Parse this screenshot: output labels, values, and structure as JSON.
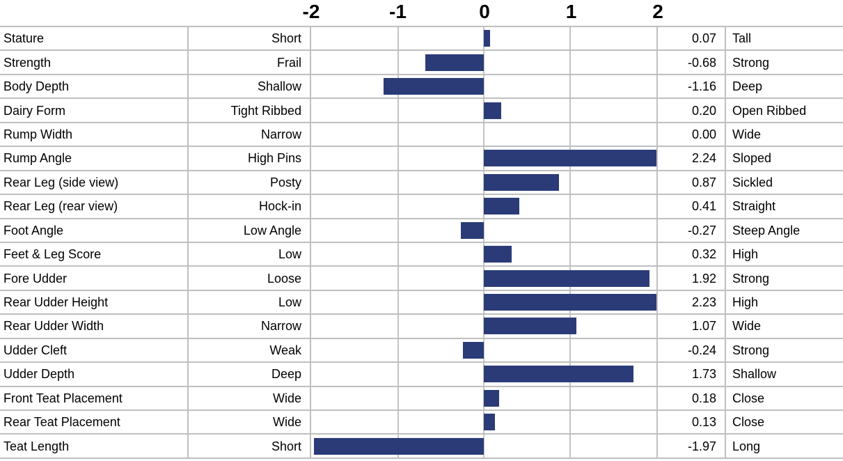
{
  "chart_data": {
    "type": "bar",
    "orientation": "horizontal",
    "axis_labels": [
      "-2",
      "-1",
      "0",
      "1",
      "2"
    ],
    "axis_ticks": [
      -2,
      -1,
      0,
      1,
      2
    ],
    "xlim": [
      -2,
      2
    ],
    "grid": true,
    "bar_color": "#2B3B78",
    "gridline_color": "#C3C3C3",
    "rows": [
      {
        "trait": "Stature",
        "low": "Short",
        "value": 0.07,
        "value_label": "0.07",
        "high": "Tall"
      },
      {
        "trait": "Strength",
        "low": "Frail",
        "value": -0.68,
        "value_label": "-0.68",
        "high": "Strong"
      },
      {
        "trait": "Body Depth",
        "low": "Shallow",
        "value": -1.16,
        "value_label": "-1.16",
        "high": "Deep"
      },
      {
        "trait": "Dairy Form",
        "low": "Tight Ribbed",
        "value": 0.2,
        "value_label": "0.20",
        "high": "Open Ribbed"
      },
      {
        "trait": "Rump Width",
        "low": "Narrow",
        "value": 0.0,
        "value_label": "0.00",
        "high": "Wide"
      },
      {
        "trait": "Rump Angle",
        "low": "High Pins",
        "value": 2.24,
        "value_label": "2.24",
        "high": "Sloped"
      },
      {
        "trait": "Rear Leg (side view)",
        "low": "Posty",
        "value": 0.87,
        "value_label": "0.87",
        "high": "Sickled"
      },
      {
        "trait": "Rear Leg (rear view)",
        "low": "Hock-in",
        "value": 0.41,
        "value_label": "0.41",
        "high": "Straight"
      },
      {
        "trait": "Foot Angle",
        "low": "Low Angle",
        "value": -0.27,
        "value_label": "-0.27",
        "high": "Steep Angle"
      },
      {
        "trait": "Feet & Leg Score",
        "low": "Low",
        "value": 0.32,
        "value_label": "0.32",
        "high": "High"
      },
      {
        "trait": "Fore Udder",
        "low": "Loose",
        "value": 1.92,
        "value_label": "1.92",
        "high": "Strong"
      },
      {
        "trait": "Rear Udder Height",
        "low": "Low",
        "value": 2.23,
        "value_label": "2.23",
        "high": "High"
      },
      {
        "trait": "Rear Udder Width",
        "low": "Narrow",
        "value": 1.07,
        "value_label": "1.07",
        "high": "Wide"
      },
      {
        "trait": "Udder Cleft",
        "low": "Weak",
        "value": -0.24,
        "value_label": "-0.24",
        "high": "Strong"
      },
      {
        "trait": "Udder Depth",
        "low": "Deep",
        "value": 1.73,
        "value_label": "1.73",
        "high": "Shallow"
      },
      {
        "trait": "Front Teat Placement",
        "low": "Wide",
        "value": 0.18,
        "value_label": "0.18",
        "high": "Close"
      },
      {
        "trait": "Rear Teat Placement",
        "low": "Wide",
        "value": 0.13,
        "value_label": "0.13",
        "high": "Close"
      },
      {
        "trait": "Teat Length",
        "low": "Short",
        "value": -1.97,
        "value_label": "-1.97",
        "high": "Long"
      }
    ]
  }
}
